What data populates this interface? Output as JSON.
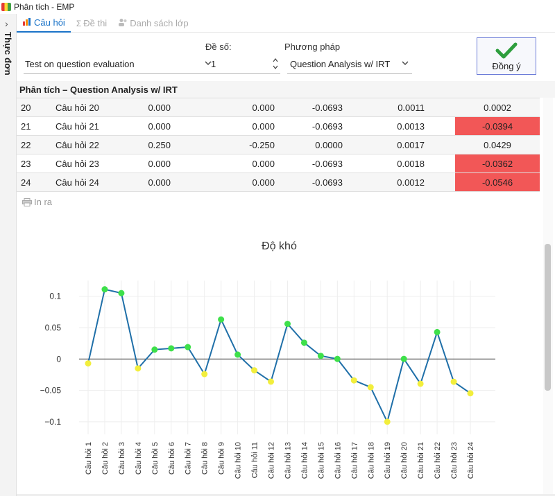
{
  "window": {
    "title": "Phân tích - EMP"
  },
  "sidebar": {
    "label": "Thực đơn"
  },
  "tabs": [
    {
      "label": "Câu hỏi",
      "active": true
    },
    {
      "label": "Đề thi",
      "active": false
    },
    {
      "label": "Danh sách lớp",
      "active": false
    }
  ],
  "form": {
    "exam_select": "Test on question evaluation",
    "exam_no_label": "Đề số:",
    "exam_no_value": "1",
    "method_label": "Phương pháp",
    "method_select": "Question Analysis w/ IRT",
    "ok_label": "Đồng ý"
  },
  "section_title": "Phân tích – Question Analysis w/ IRT",
  "table": {
    "rows": [
      {
        "no": "20",
        "name": "Câu hỏi 20",
        "a": "0.000",
        "b": "0.000",
        "c": "-0.0693",
        "d": "0.0011",
        "e": "0.0002",
        "neg": false
      },
      {
        "no": "21",
        "name": "Câu hỏi 21",
        "a": "0.000",
        "b": "0.000",
        "c": "-0.0693",
        "d": "0.0013",
        "e": "-0.0394",
        "neg": true
      },
      {
        "no": "22",
        "name": "Câu hỏi 22",
        "a": "0.250",
        "b": "-0.250",
        "c": "0.0000",
        "d": "0.0017",
        "e": "0.0429",
        "neg": false
      },
      {
        "no": "23",
        "name": "Câu hỏi 23",
        "a": "0.000",
        "b": "0.000",
        "c": "-0.0693",
        "d": "0.0018",
        "e": "-0.0362",
        "neg": true
      },
      {
        "no": "24",
        "name": "Câu hỏi 24",
        "a": "0.000",
        "b": "0.000",
        "c": "-0.0693",
        "d": "0.0012",
        "e": "-0.0546",
        "neg": true
      }
    ]
  },
  "print_label": "In ra",
  "colors": {
    "accent": "#1a73c8",
    "negative_cell": "#f25757",
    "line": "#1f6fa8",
    "point_pos": "#3ee04a",
    "point_neg": "#f2ee3c"
  },
  "chart_data": {
    "type": "line",
    "title": "Độ khó",
    "categories": [
      "Câu hỏi 1",
      "Câu hỏi 2",
      "Câu hỏi 3",
      "Câu hỏi 4",
      "Câu hỏi 5",
      "Câu hỏi 6",
      "Câu hỏi 7",
      "Câu hỏi 8",
      "Câu hỏi 9",
      "Câu hỏi 10",
      "Câu hỏi 11",
      "Câu hỏi 12",
      "Câu hỏi 13",
      "Câu hỏi 14",
      "Câu hỏi 15",
      "Câu hỏi 16",
      "Câu hỏi 17",
      "Câu hỏi 18",
      "Câu hỏi 19",
      "Câu hỏi 20",
      "Câu hỏi 21",
      "Câu hỏi 22",
      "Câu hỏi 23",
      "Câu hỏi 24"
    ],
    "values": [
      -0.007,
      0.111,
      0.105,
      -0.015,
      0.015,
      0.017,
      0.019,
      -0.024,
      0.063,
      0.007,
      -0.018,
      -0.036,
      0.056,
      0.026,
      0.005,
      0.0002,
      -0.034,
      -0.045,
      -0.1,
      0.0002,
      -0.0394,
      0.0429,
      -0.0362,
      -0.0546
    ],
    "yticks": [
      "0.1",
      "0.05",
      "0",
      "−0.05",
      "−0.1"
    ],
    "ytick_values": [
      0.1,
      0.05,
      0,
      -0.05,
      -0.1
    ],
    "ylim": [
      -0.12,
      0.125
    ],
    "grid": true
  }
}
